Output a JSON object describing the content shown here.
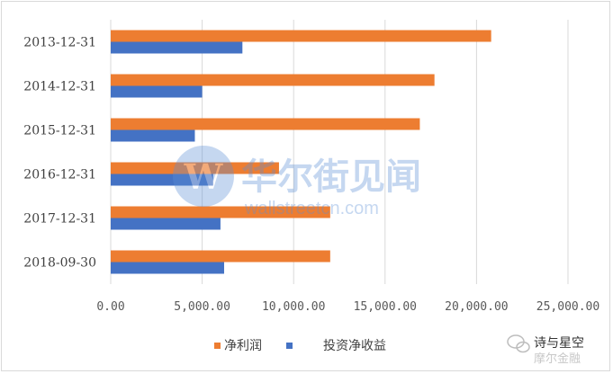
{
  "chart_data": {
    "type": "bar",
    "orientation": "horizontal",
    "categories": [
      "2013-12-31",
      "2014-12-31",
      "2015-12-31",
      "2016-12-31",
      "2017-12-31",
      "2018-09-30"
    ],
    "series": [
      {
        "name": "净利润",
        "color": "#ED7D31",
        "values": [
          20800,
          17700,
          16900,
          9200,
          12000,
          12000
        ]
      },
      {
        "name": "投资净收益",
        "color": "#4472C4",
        "values": [
          7200,
          5000,
          4600,
          5600,
          6000,
          6200
        ]
      }
    ],
    "xlim": [
      0,
      25000
    ],
    "x_ticks": [
      "0.00",
      "5,000.00",
      "10,000.00",
      "15,000.00",
      "20,000.00",
      "25,000.00"
    ],
    "grid": "vertical",
    "legend_position": "bottom"
  },
  "watermark": {
    "main_text": "华尔街见闻",
    "sub_text": "wallstreetcn.com",
    "corner_line1": "诗与星空",
    "corner_line2": "摩尔金融",
    "logo_color": "#5b8fd6",
    "corner_icon": "wechat-icon"
  }
}
